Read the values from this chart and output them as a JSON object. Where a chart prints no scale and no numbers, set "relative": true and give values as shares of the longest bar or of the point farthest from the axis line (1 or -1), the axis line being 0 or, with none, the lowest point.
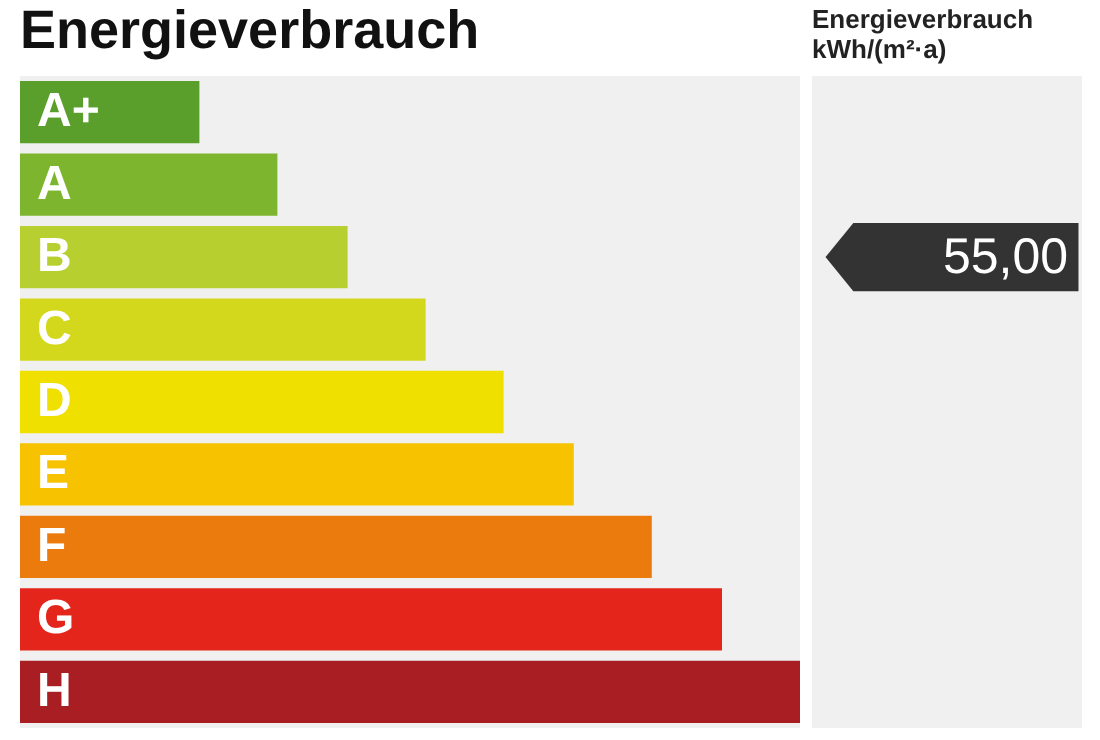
{
  "chart_data": {
    "type": "bar",
    "orientation": "horizontal",
    "relative": true,
    "title": "Energieverbrauch",
    "xlabel": "Energieverbrauch kWh/(m²·a)",
    "categories": [
      "A+",
      "A",
      "B",
      "C",
      "D",
      "E",
      "F",
      "G",
      "H"
    ],
    "values": [
      0.23,
      0.33,
      0.42,
      0.52,
      0.62,
      0.71,
      0.81,
      0.9,
      1
    ],
    "colors": [
      "#5a9e2c",
      "#7db52f",
      "#b8cf30",
      "#d3d81c",
      "#f0e000",
      "#f7c300",
      "#ec7b0d",
      "#e3251b",
      "#a81e22"
    ],
    "annotations": [
      "55,00"
    ]
  }
}
